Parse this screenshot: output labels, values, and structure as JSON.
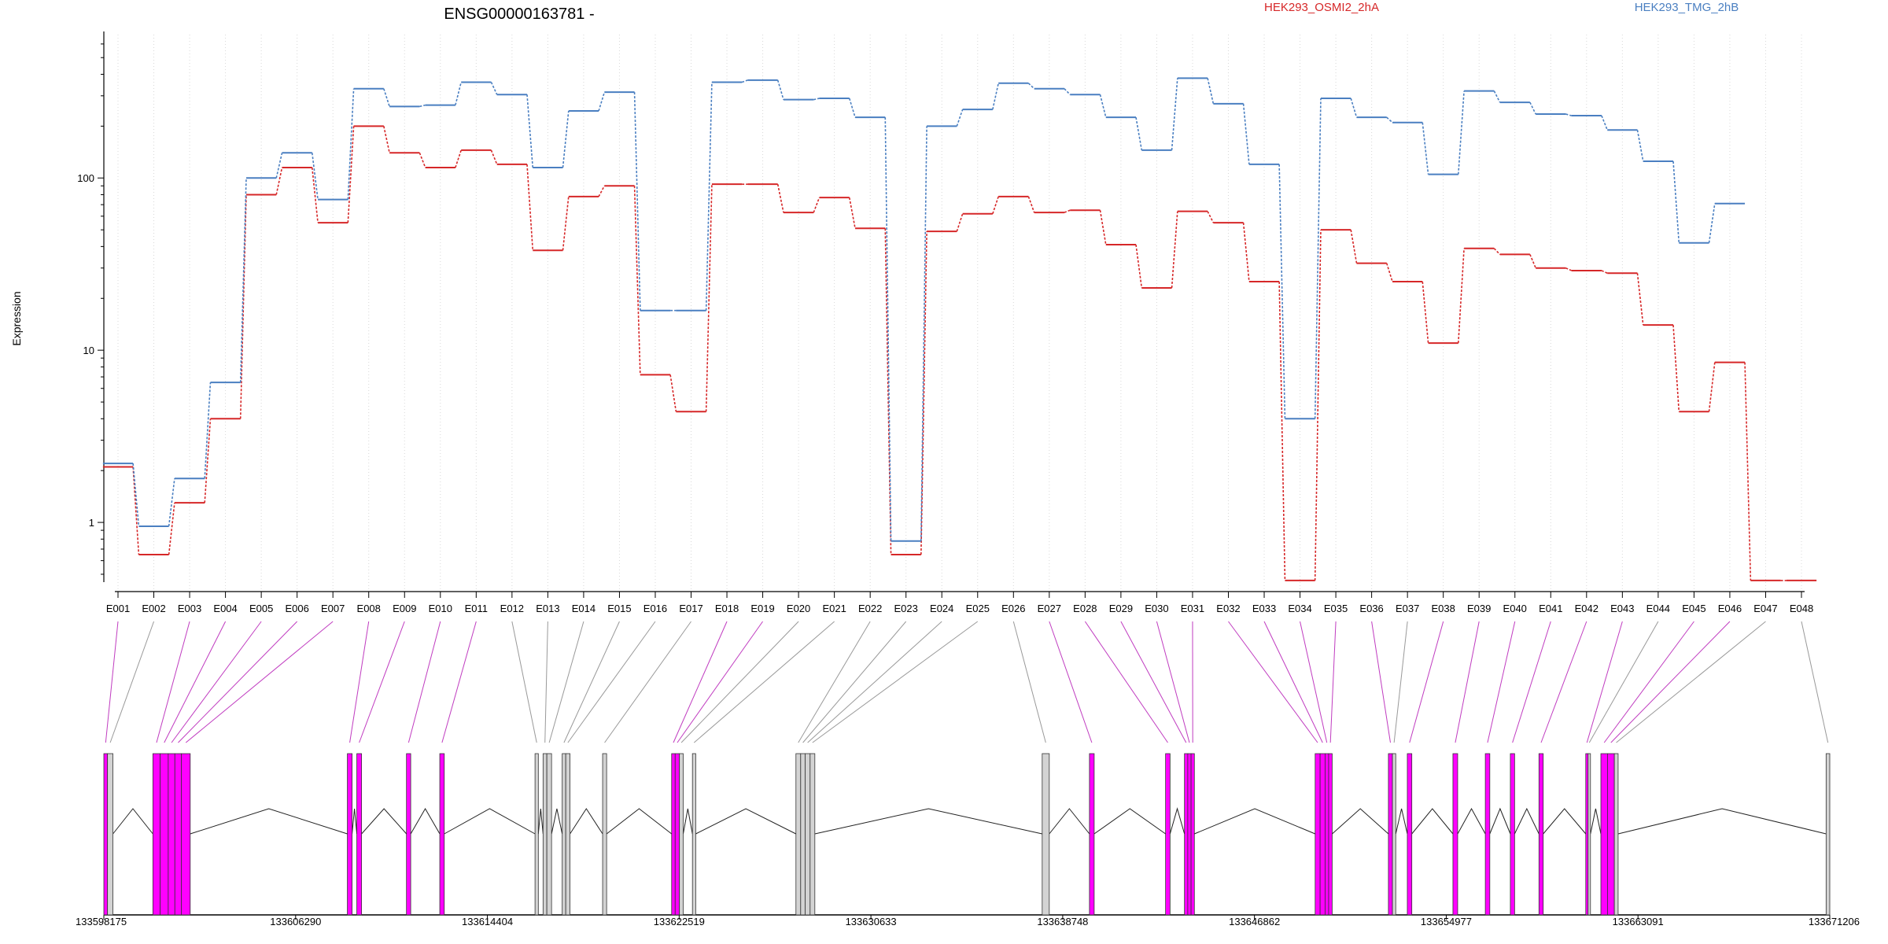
{
  "chart_data": {
    "type": "line",
    "title": "ENSG00000163781 -",
    "xlabel": "",
    "ylabel": "Expression",
    "y_scale": "log",
    "ylim": [
      0.45,
      680
    ],
    "y_ticks": [
      "1",
      "10",
      "100"
    ],
    "grid": "vertical dotted lines at each exon",
    "legend_placement": "top, as colored labels",
    "categories": [
      "E001",
      "E002",
      "E003",
      "E004",
      "E005",
      "E006",
      "E007",
      "E008",
      "E009",
      "E010",
      "E011",
      "E012",
      "E013",
      "E014",
      "E015",
      "E016",
      "E017",
      "E018",
      "E019",
      "E020",
      "E021",
      "E022",
      "E023",
      "E024",
      "E025",
      "E026",
      "E027",
      "E028",
      "E029",
      "E030",
      "E031",
      "E032",
      "E033",
      "E034",
      "E035",
      "E036",
      "E037",
      "E038",
      "E039",
      "E040",
      "E041",
      "E042",
      "E043",
      "E044",
      "E045",
      "E046",
      "E047",
      "E048"
    ],
    "series": [
      {
        "name": "HEK293_OSMI2_2hA",
        "color": "#d62728",
        "values": [
          2.1,
          0.65,
          1.3,
          4.0,
          80,
          115,
          55,
          200,
          140,
          115,
          145,
          120,
          38,
          78,
          90,
          7.2,
          4.4,
          92,
          92,
          63,
          77,
          51,
          0.65,
          49,
          62,
          78,
          63,
          65,
          41,
          23,
          64,
          55,
          25,
          0.46,
          50,
          32,
          25,
          11,
          39,
          36,
          30,
          29,
          28,
          14,
          4.4,
          8.5,
          0.46,
          0.46
        ]
      },
      {
        "name": "HEK293_TMG_2hB",
        "color": "#4a7fc1",
        "values": [
          2.2,
          0.95,
          1.8,
          6.5,
          100,
          140,
          75,
          330,
          260,
          265,
          360,
          305,
          115,
          245,
          315,
          17,
          17,
          360,
          370,
          285,
          290,
          225,
          0.78,
          200,
          250,
          355,
          330,
          305,
          225,
          145,
          380,
          270,
          120,
          4.0,
          290,
          225,
          210,
          105,
          320,
          275,
          235,
          230,
          190,
          125,
          42,
          71,
          null,
          null
        ]
      }
    ],
    "gene_model": {
      "coord_ticks": [
        "133598175",
        "133606290",
        "133614404",
        "133622519",
        "133630633",
        "133638748",
        "133646862",
        "133654977",
        "133663091",
        "133671206"
      ],
      "coord_range": [
        133598175,
        133671206
      ],
      "exon_highlight_color": "#ff00ff",
      "exon_plain_color": "#d3d3d3",
      "exons": [
        {
          "id": "E001",
          "start": 133598175,
          "end": 133598330,
          "highlight": true
        },
        {
          "id": "E002",
          "start": 133598330,
          "end": 133598560,
          "highlight": false
        },
        {
          "id": "E003",
          "start": 133600250,
          "end": 133600560,
          "highlight": true
        },
        {
          "id": "E004",
          "start": 133600560,
          "end": 133600900,
          "highlight": true
        },
        {
          "id": "E005",
          "start": 133600900,
          "end": 133601180,
          "highlight": true
        },
        {
          "id": "E006",
          "start": 133601180,
          "end": 133601460,
          "highlight": true
        },
        {
          "id": "E007",
          "start": 133601460,
          "end": 133601830,
          "highlight": true
        },
        {
          "id": "E008",
          "start": 133608480,
          "end": 133608680,
          "highlight": true
        },
        {
          "id": "E009",
          "start": 133608880,
          "end": 133609080,
          "highlight": true
        },
        {
          "id": "E010",
          "start": 133610980,
          "end": 133611160,
          "highlight": true
        },
        {
          "id": "E011",
          "start": 133612390,
          "end": 133612580,
          "highlight": true
        },
        {
          "id": "E012",
          "start": 133616420,
          "end": 133616560,
          "highlight": false
        },
        {
          "id": "E013",
          "start": 133616760,
          "end": 133616920,
          "highlight": false
        },
        {
          "id": "E014",
          "start": 133616920,
          "end": 133617120,
          "highlight": false
        },
        {
          "id": "E015",
          "start": 133617570,
          "end": 133617720,
          "highlight": false
        },
        {
          "id": "E016",
          "start": 133617720,
          "end": 133617900,
          "highlight": false
        },
        {
          "id": "E017",
          "start": 133619280,
          "end": 133619450,
          "highlight": false
        },
        {
          "id": "E018",
          "start": 133622200,
          "end": 133622350,
          "highlight": true
        },
        {
          "id": "E019",
          "start": 133622350,
          "end": 133622530,
          "highlight": true
        },
        {
          "id": "E020",
          "start": 133622530,
          "end": 133622690,
          "highlight": false
        },
        {
          "id": "E021",
          "start": 133623080,
          "end": 133623220,
          "highlight": false
        },
        {
          "id": "E022",
          "start": 133627460,
          "end": 133627660,
          "highlight": false
        },
        {
          "id": "E023",
          "start": 133627660,
          "end": 133627850,
          "highlight": false
        },
        {
          "id": "E024",
          "start": 133627850,
          "end": 133628060,
          "highlight": false
        },
        {
          "id": "E025",
          "start": 133628060,
          "end": 133628260,
          "highlight": false
        },
        {
          "id": "E026",
          "start": 133637880,
          "end": 133638180,
          "highlight": false
        },
        {
          "id": "E027",
          "start": 133639880,
          "end": 133640080,
          "highlight": true
        },
        {
          "id": "E028",
          "start": 133643100,
          "end": 133643290,
          "highlight": true
        },
        {
          "id": "E029",
          "start": 133643900,
          "end": 133644040,
          "highlight": true
        },
        {
          "id": "E030",
          "start": 133644040,
          "end": 133644180,
          "highlight": true
        },
        {
          "id": "E031",
          "start": 133644180,
          "end": 133644320,
          "highlight": true
        },
        {
          "id": "E032",
          "start": 133649430,
          "end": 133649640,
          "highlight": true
        },
        {
          "id": "E033",
          "start": 133649640,
          "end": 133649850,
          "highlight": true
        },
        {
          "id": "E034",
          "start": 133649850,
          "end": 133650000,
          "highlight": true
        },
        {
          "id": "E035",
          "start": 133650000,
          "end": 133650150,
          "highlight": true
        },
        {
          "id": "E036",
          "start": 133652530,
          "end": 133652700,
          "highlight": true
        },
        {
          "id": "E037",
          "start": 133652700,
          "end": 133652840,
          "highlight": false
        },
        {
          "id": "E038",
          "start": 133653330,
          "end": 133653520,
          "highlight": true
        },
        {
          "id": "E039",
          "start": 133655260,
          "end": 133655460,
          "highlight": true
        },
        {
          "id": "E040",
          "start": 133656630,
          "end": 133656820,
          "highlight": true
        },
        {
          "id": "E041",
          "start": 133657690,
          "end": 133657870,
          "highlight": true
        },
        {
          "id": "E042",
          "start": 133658900,
          "end": 133659080,
          "highlight": true
        },
        {
          "id": "E043",
          "start": 133660880,
          "end": 133660980,
          "highlight": true
        },
        {
          "id": "E044",
          "start": 133660980,
          "end": 133661080,
          "highlight": false
        },
        {
          "id": "E045",
          "start": 133661520,
          "end": 133661800,
          "highlight": true
        },
        {
          "id": "E046",
          "start": 133661800,
          "end": 133662090,
          "highlight": true
        },
        {
          "id": "E047",
          "start": 133662090,
          "end": 133662250,
          "highlight": false
        },
        {
          "id": "E048",
          "start": 133671050,
          "end": 133671206,
          "highlight": false
        }
      ]
    }
  }
}
